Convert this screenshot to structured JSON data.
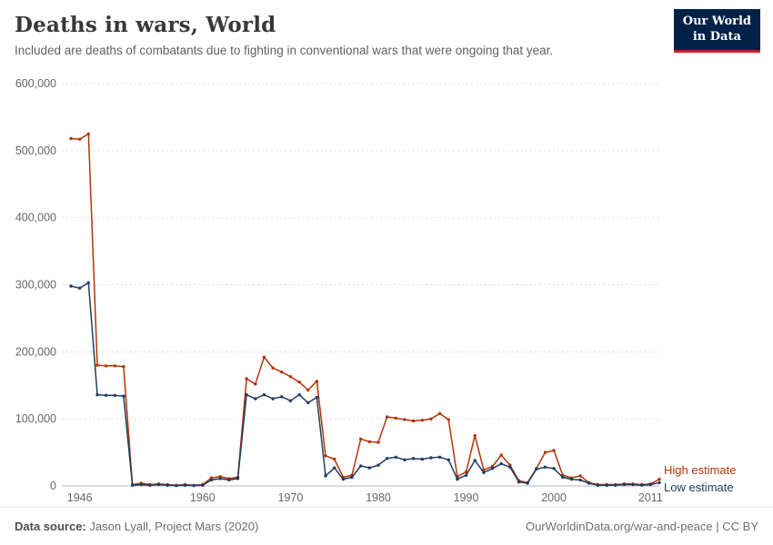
{
  "header": {
    "title": "Deaths in wars, World",
    "subtitle": "Included are deaths of combatants due to fighting in conventional wars that were ongoing that year.",
    "logo_line1": "Our World",
    "logo_line2": "in Data"
  },
  "footer": {
    "source_label": "Data source:",
    "source_text": "Jason Lyall, Project Mars (2020)",
    "credit": "OurWorldinData.org/war-and-peace | CC BY"
  },
  "colors": {
    "logo_bg": "#002147",
    "logo_accent": "#c0232d",
    "high_estimate": "#b13507",
    "low_estimate": "#1d3d63"
  },
  "chart_data": {
    "type": "line",
    "title": "Deaths in wars, World",
    "xlabel": "",
    "ylabel": "",
    "ylim": [
      0,
      600000
    ],
    "grid": "horizontal-dashed",
    "legend_position": "right-end-labels",
    "x": [
      1945,
      1946,
      1947,
      1948,
      1949,
      1950,
      1951,
      1952,
      1953,
      1954,
      1955,
      1956,
      1957,
      1958,
      1959,
      1960,
      1961,
      1962,
      1963,
      1964,
      1965,
      1966,
      1967,
      1968,
      1969,
      1970,
      1971,
      1972,
      1973,
      1974,
      1975,
      1976,
      1977,
      1978,
      1979,
      1980,
      1981,
      1982,
      1983,
      1984,
      1985,
      1986,
      1987,
      1988,
      1989,
      1990,
      1991,
      1992,
      1993,
      1994,
      1995,
      1996,
      1997,
      1998,
      1999,
      2000,
      2001,
      2002,
      2003,
      2004,
      2005,
      2006,
      2007,
      2008,
      2009,
      2010,
      2011,
      2012
    ],
    "series": [
      {
        "name": "High estimate",
        "color": "#b13507",
        "values": [
          518000,
          517000,
          525000,
          180000,
          179000,
          179000,
          178000,
          2000,
          4000,
          2000,
          3000,
          2000,
          1000,
          2000,
          1000,
          2000,
          12000,
          14000,
          11000,
          13000,
          160000,
          152000,
          192000,
          176000,
          170000,
          163000,
          155000,
          143000,
          156000,
          45000,
          40000,
          13000,
          16000,
          70000,
          66000,
          65000,
          103000,
          101000,
          99000,
          97000,
          98000,
          100000,
          108000,
          99000,
          14000,
          21000,
          75000,
          24000,
          29000,
          46000,
          31000,
          8000,
          5000,
          26000,
          50000,
          53000,
          16000,
          12000,
          15000,
          5000,
          2000,
          2000,
          2000,
          3000,
          3000,
          2000,
          3000,
          10000
        ]
      },
      {
        "name": "Low estimate",
        "color": "#1d3d63",
        "values": [
          298000,
          295000,
          303000,
          136000,
          135000,
          135000,
          134000,
          1000,
          2000,
          1000,
          2000,
          1000,
          500,
          1000,
          500,
          1000,
          9000,
          11000,
          9000,
          11000,
          136000,
          130000,
          136000,
          130000,
          133000,
          127000,
          136000,
          124000,
          132000,
          15000,
          27000,
          10000,
          13000,
          30000,
          27000,
          31000,
          41000,
          43000,
          39000,
          41000,
          40000,
          42000,
          43000,
          39000,
          10000,
          16000,
          38000,
          20000,
          26000,
          33000,
          28000,
          6000,
          4000,
          25000,
          28000,
          26000,
          13000,
          10000,
          9000,
          4000,
          1000,
          1000,
          1000,
          2000,
          2000,
          1000,
          2000,
          5000
        ]
      }
    ],
    "xticks": [
      1946,
      1960,
      1970,
      1980,
      1990,
      2000,
      2011
    ],
    "yticks": [
      0,
      100000,
      200000,
      300000,
      400000,
      500000,
      600000
    ],
    "ytick_labels": [
      "0",
      "100,000",
      "200,000",
      "300,000",
      "400,000",
      "500,000",
      "600,000"
    ]
  }
}
